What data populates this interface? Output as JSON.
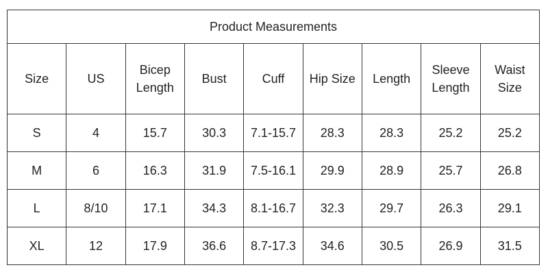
{
  "table": {
    "title": "Product Measurements",
    "header": [
      [
        "Size"
      ],
      [
        "US"
      ],
      [
        "Bicep",
        "Length"
      ],
      [
        "Bust"
      ],
      [
        "Cuff"
      ],
      [
        "Hip Size"
      ],
      [
        "Length"
      ],
      [
        "Sleeve",
        "Length"
      ],
      [
        "Waist",
        "Size"
      ]
    ],
    "rows": [
      [
        "S",
        "4",
        "15.7",
        "30.3",
        "7.1-15.7",
        "28.3",
        "28.3",
        "25.2",
        "25.2"
      ],
      [
        "M",
        "6",
        "16.3",
        "31.9",
        "7.5-16.1",
        "29.9",
        "28.9",
        "25.7",
        "26.8"
      ],
      [
        "L",
        "8/10",
        "17.1",
        "34.3",
        "8.1-16.7",
        "32.3",
        "29.7",
        "26.3",
        "29.1"
      ],
      [
        "XL",
        "12",
        "17.9",
        "36.6",
        "8.7-17.3",
        "34.6",
        "30.5",
        "26.9",
        "31.5"
      ]
    ]
  }
}
